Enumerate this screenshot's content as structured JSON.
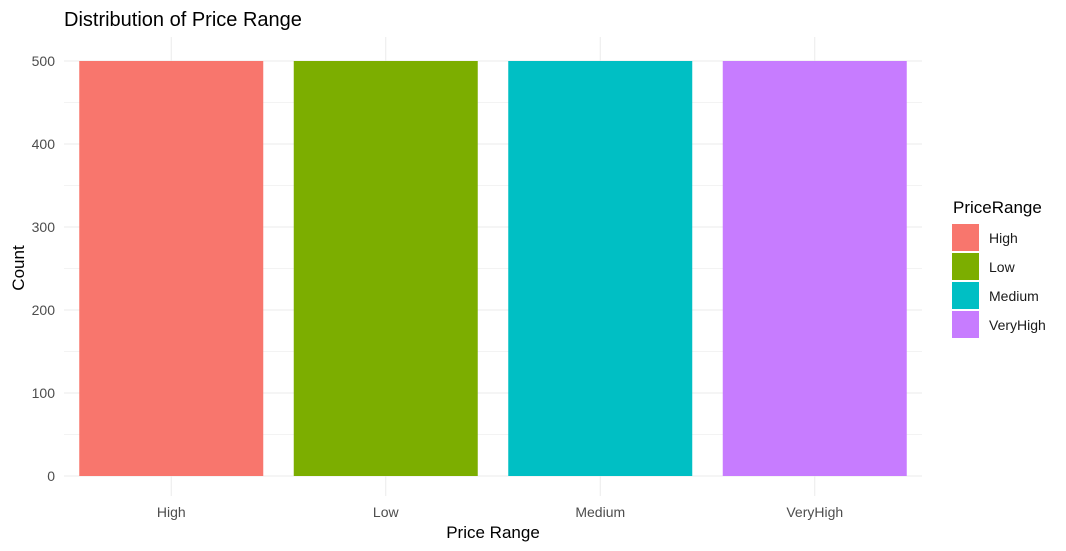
{
  "chart_data": {
    "type": "bar",
    "title": "Distribution of Price Range",
    "xlabel": "Price Range",
    "ylabel": "Count",
    "categories": [
      "High",
      "Low",
      "Medium",
      "VeryHigh"
    ],
    "values": [
      500,
      500,
      500,
      500
    ],
    "colors": [
      "#F8766D",
      "#7CAE00",
      "#00BFC4",
      "#C77CFF"
    ],
    "ylim": [
      0,
      500
    ],
    "yticks": [
      0,
      100,
      200,
      300,
      400,
      500
    ],
    "grid": true,
    "legend": {
      "title": "PriceRange",
      "position": "right",
      "entries": [
        "High",
        "Low",
        "Medium",
        "VeryHigh"
      ]
    }
  }
}
